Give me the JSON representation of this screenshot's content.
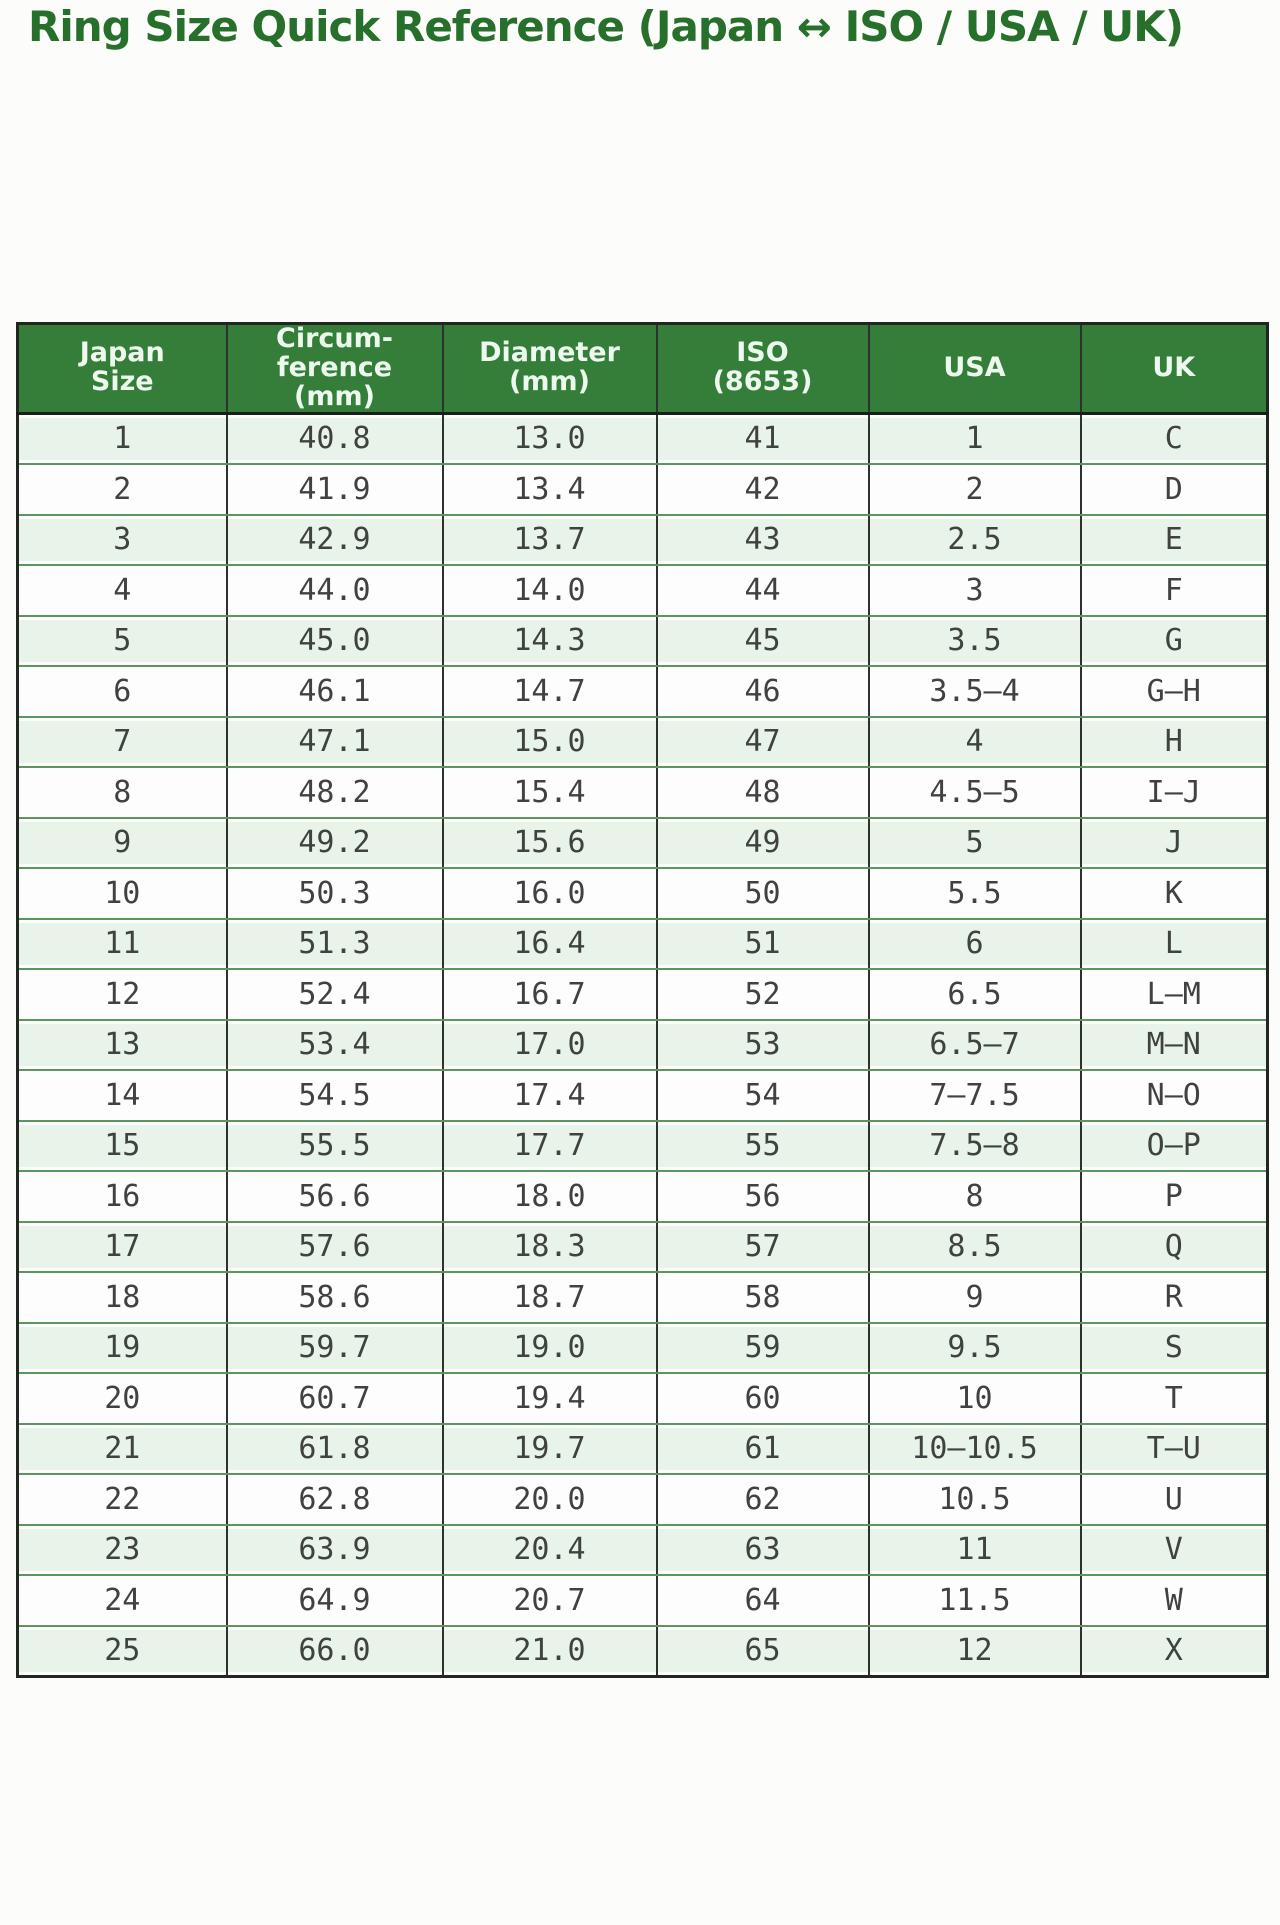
{
  "title": "Ring Size Quick Reference (Japan ↔ ISO / USA / UK)",
  "colors": {
    "title_text": "#27702c",
    "header_bg": "#347e3a",
    "header_text": "#edf9ee",
    "row_alt_bg": "#e8f3e9",
    "row_bg": "#fdfdfd",
    "border_dark": "#2d322d",
    "border_green": "#5b965f",
    "cell_text": "#3f423f"
  },
  "chart_data": {
    "type": "table",
    "title": "Ring Size Quick Reference (Japan ↔ ISO / USA / UK)",
    "columns": [
      "Japan Size",
      "Circumference (mm)",
      "Diameter (mm)",
      "ISO (8653)",
      "USA",
      "UK"
    ],
    "column_ids": [
      "japan-size",
      "circumference-mm",
      "diameter-mm",
      "iso-8653",
      "usa",
      "uk"
    ],
    "header_display": [
      "Japan\nSize",
      "Circum-\nference\n(mm)",
      "Diameter\n(mm)",
      "ISO\n(8653)",
      "USA",
      "UK"
    ],
    "rows": [
      [
        "1",
        "40.8",
        "13.0",
        "41",
        "1",
        "C"
      ],
      [
        "2",
        "41.9",
        "13.4",
        "42",
        "2",
        "D"
      ],
      [
        "3",
        "42.9",
        "13.7",
        "43",
        "2.5",
        "E"
      ],
      [
        "4",
        "44.0",
        "14.0",
        "44",
        "3",
        "F"
      ],
      [
        "5",
        "45.0",
        "14.3",
        "45",
        "3.5",
        "G"
      ],
      [
        "6",
        "46.1",
        "14.7",
        "46",
        "3.5–4",
        "G–H"
      ],
      [
        "7",
        "47.1",
        "15.0",
        "47",
        "4",
        "H"
      ],
      [
        "8",
        "48.2",
        "15.4",
        "48",
        "4.5–5",
        "I–J"
      ],
      [
        "9",
        "49.2",
        "15.6",
        "49",
        "5",
        "J"
      ],
      [
        "10",
        "50.3",
        "16.0",
        "50",
        "5.5",
        "K"
      ],
      [
        "11",
        "51.3",
        "16.4",
        "51",
        "6",
        "L"
      ],
      [
        "12",
        "52.4",
        "16.7",
        "52",
        "6.5",
        "L–M"
      ],
      [
        "13",
        "53.4",
        "17.0",
        "53",
        "6.5–7",
        "M–N"
      ],
      [
        "14",
        "54.5",
        "17.4",
        "54",
        "7–7.5",
        "N–O"
      ],
      [
        "15",
        "55.5",
        "17.7",
        "55",
        "7.5–8",
        "O–P"
      ],
      [
        "16",
        "56.6",
        "18.0",
        "56",
        "8",
        "P"
      ],
      [
        "17",
        "57.6",
        "18.3",
        "57",
        "8.5",
        "Q"
      ],
      [
        "18",
        "58.6",
        "18.7",
        "58",
        "9",
        "R"
      ],
      [
        "19",
        "59.7",
        "19.0",
        "59",
        "9.5",
        "S"
      ],
      [
        "20",
        "60.7",
        "19.4",
        "60",
        "10",
        "T"
      ],
      [
        "21",
        "61.8",
        "19.7",
        "61",
        "10–10.5",
        "T–U"
      ],
      [
        "22",
        "62.8",
        "20.0",
        "62",
        "10.5",
        "U"
      ],
      [
        "23",
        "63.9",
        "20.4",
        "63",
        "11",
        "V"
      ],
      [
        "24",
        "64.9",
        "20.7",
        "64",
        "11.5",
        "W"
      ],
      [
        "25",
        "66.0",
        "21.0",
        "65",
        "12",
        "X"
      ]
    ]
  }
}
